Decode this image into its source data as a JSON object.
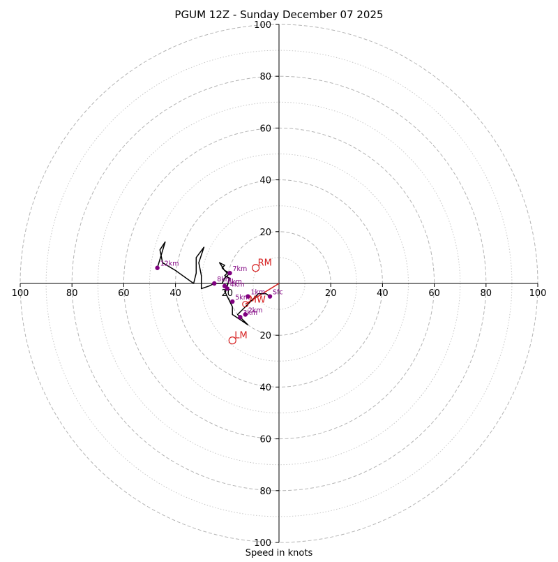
{
  "chart_data": {
    "type": "hodograph",
    "title": "PGUM 12Z - Sunday December 07 2025",
    "xlabel": "Speed in knots",
    "units": "knots",
    "range": 100,
    "ring_major": [
      20,
      40,
      60,
      80,
      100
    ],
    "ring_minor": [
      10,
      30,
      50,
      70,
      90
    ],
    "tick_labels": {
      "right": [
        "20",
        "40",
        "60",
        "80",
        "100"
      ],
      "left": [
        "20",
        "40",
        "60",
        "80",
        "100"
      ],
      "top": [
        "20",
        "40",
        "60",
        "80",
        "100"
      ],
      "bottom": [
        "20",
        "40",
        "60",
        "80",
        "100"
      ]
    },
    "hodograph_trace": [
      [
        -3.5,
        -5
      ],
      [
        -5,
        -4
      ],
      [
        -8,
        -4
      ],
      [
        -10,
        -6
      ],
      [
        -12,
        -8
      ],
      [
        -14,
        -10
      ],
      [
        -16,
        -12
      ],
      [
        -12,
        -16
      ],
      [
        -15,
        -14
      ],
      [
        -18,
        -12
      ],
      [
        -18,
        -9
      ],
      [
        -19,
        -7
      ],
      [
        -20,
        -5
      ],
      [
        -21,
        -3
      ],
      [
        -20,
        -1
      ],
      [
        -19,
        2
      ],
      [
        -21,
        3
      ],
      [
        -20,
        4
      ],
      [
        -22,
        6
      ],
      [
        -21,
        7
      ],
      [
        -23,
        8
      ],
      [
        -21,
        5
      ],
      [
        -19,
        4
      ],
      [
        -21,
        2
      ],
      [
        -22,
        0
      ],
      [
        -25,
        0
      ],
      [
        -27,
        -1
      ],
      [
        -30,
        -2
      ],
      [
        -30,
        3
      ],
      [
        -31,
        8
      ],
      [
        -29,
        14
      ],
      [
        -32,
        10
      ],
      [
        -32,
        7
      ],
      [
        -32,
        4
      ],
      [
        -33,
        0
      ],
      [
        -40,
        5
      ],
      [
        -45,
        8
      ],
      [
        -46,
        13
      ],
      [
        -44,
        16
      ],
      [
        -47,
        6
      ]
    ],
    "height_markers": [
      {
        "label": "Sfc",
        "u": -3.5,
        "v": -5
      },
      {
        "label": "1km",
        "u": -12,
        "v": -5
      },
      {
        "label": "2km",
        "u": -13,
        "v": -12
      },
      {
        "label": "3km",
        "u": -15,
        "v": -13
      },
      {
        "label": "5km",
        "u": -18,
        "v": -7
      },
      {
        "label": "4km",
        "u": -20,
        "v": -2
      },
      {
        "label": "6km",
        "u": -21,
        "v": -1
      },
      {
        "label": "7km",
        "u": -19,
        "v": 4
      },
      {
        "label": "8km",
        "u": -25,
        "v": 0
      },
      {
        "label": "12km",
        "u": -47,
        "v": 6
      }
    ],
    "mean_wind": {
      "label": "MW",
      "u": -13,
      "v": -8
    },
    "shear_vector": {
      "from": [
        -13,
        -8
      ],
      "to": [
        0,
        0
      ]
    },
    "storm_motion": [
      {
        "label": "RM",
        "u": -9,
        "v": 6
      },
      {
        "label": "LM",
        "u": -18,
        "v": -22
      }
    ]
  }
}
